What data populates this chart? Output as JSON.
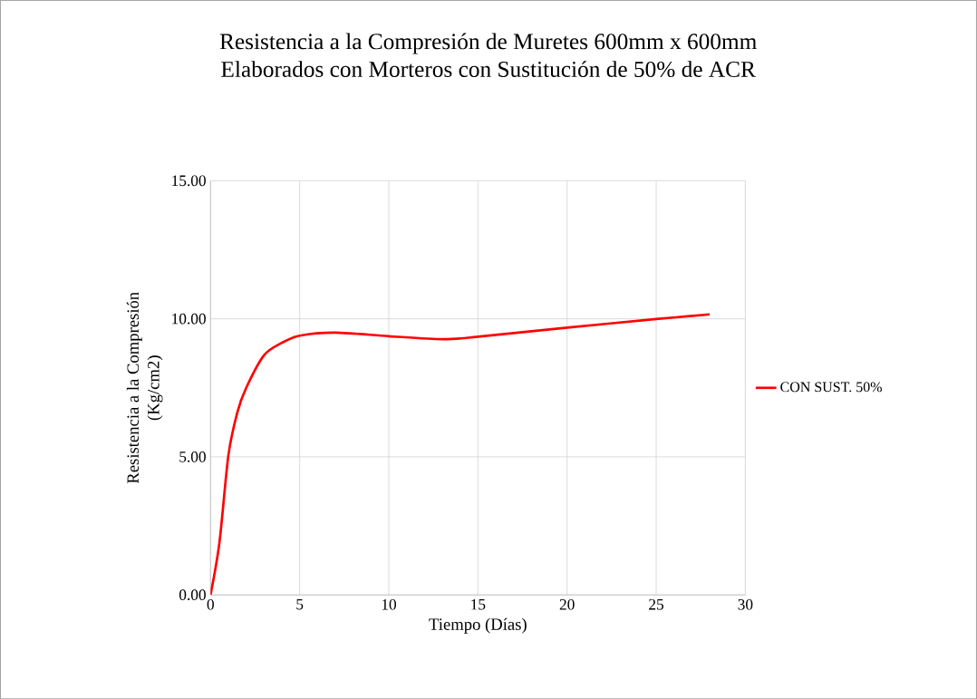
{
  "chart_data": {
    "type": "line",
    "title": "Resistencia a la Compresión de Muretes 600mm x 600mm\nElaborados con Morteros con Sustitución de 50% de ACR",
    "xlabel": "Tiempo (Días)",
    "ylabel": "Resistencia a la Compresión\n(Kg/cm2)",
    "x": [
      0,
      0.5,
      1,
      1.5,
      2,
      3,
      4,
      5,
      7,
      10,
      13,
      15,
      20,
      25,
      28
    ],
    "series": [
      {
        "name": "CON SUST. 50%",
        "color": "#ff0000",
        "values": [
          0,
          1.9,
          5.05,
          6.6,
          7.5,
          8.68,
          9.13,
          9.39,
          9.5,
          9.37,
          9.26,
          9.35,
          9.68,
          9.99,
          10.16
        ]
      }
    ],
    "xlim": [
      0,
      30
    ],
    "xticks": [
      0,
      5,
      10,
      15,
      20,
      25,
      30
    ],
    "ylim": [
      0,
      15
    ],
    "yticks": [
      {
        "value": 0,
        "label": "0.00"
      },
      {
        "value": 5,
        "label": "5.00"
      },
      {
        "value": 10,
        "label": "10.00"
      },
      {
        "value": 15,
        "label": "15.00"
      }
    ],
    "grid": true,
    "legend": "right",
    "marker": "none",
    "line_style": "solid"
  }
}
